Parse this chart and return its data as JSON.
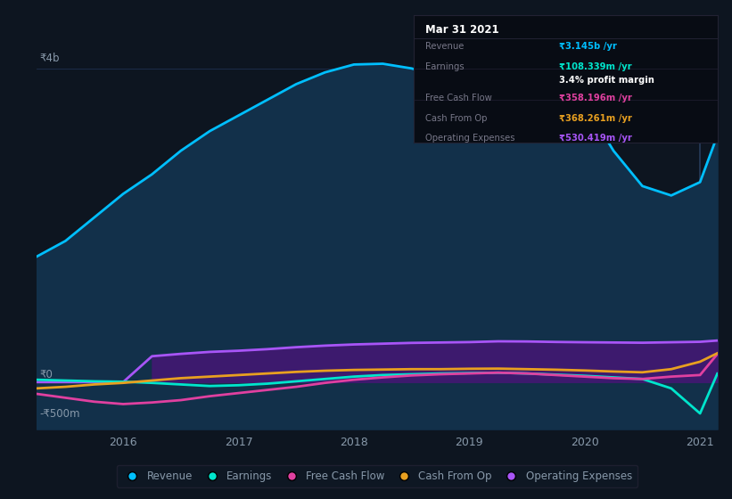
{
  "background_color": "#0d1520",
  "plot_bg_color": "#0d1520",
  "x_years": [
    2015.25,
    2015.5,
    2015.75,
    2016.0,
    2016.25,
    2016.5,
    2016.75,
    2017.0,
    2017.25,
    2017.5,
    2017.75,
    2018.0,
    2018.25,
    2018.5,
    2018.75,
    2019.0,
    2019.25,
    2019.5,
    2019.75,
    2020.0,
    2020.25,
    2020.5,
    2020.75,
    2021.0,
    2021.15
  ],
  "revenue": [
    1600,
    1800,
    2100,
    2400,
    2650,
    2950,
    3200,
    3400,
    3600,
    3800,
    3950,
    4050,
    4060,
    4000,
    3900,
    3800,
    3850,
    3780,
    3680,
    3550,
    2950,
    2500,
    2380,
    2550,
    3145
  ],
  "earnings": [
    30,
    20,
    10,
    5,
    -10,
    -30,
    -50,
    -40,
    -20,
    10,
    40,
    70,
    90,
    100,
    110,
    115,
    120,
    110,
    95,
    80,
    60,
    40,
    -80,
    -400,
    108
  ],
  "free_cash_flow": [
    -150,
    -200,
    -250,
    -280,
    -260,
    -230,
    -180,
    -140,
    -100,
    -60,
    -10,
    30,
    60,
    85,
    100,
    110,
    120,
    110,
    90,
    70,
    50,
    40,
    70,
    90,
    358
  ],
  "cash_from_op": [
    -80,
    -60,
    -30,
    -10,
    20,
    50,
    70,
    90,
    110,
    130,
    145,
    155,
    160,
    165,
    165,
    170,
    172,
    165,
    158,
    148,
    135,
    125,
    165,
    260,
    368
  ],
  "operating_expenses": [
    0,
    0,
    0,
    0,
    330,
    360,
    385,
    400,
    420,
    445,
    465,
    480,
    490,
    500,
    505,
    510,
    520,
    518,
    512,
    508,
    505,
    502,
    508,
    514,
    530
  ],
  "revenue_color": "#00bfff",
  "revenue_fill": "#12304a",
  "earnings_color": "#00e5cc",
  "free_cash_flow_color": "#e040a0",
  "cash_from_op_color": "#e8a020",
  "operating_expenses_color": "#a855f7",
  "operating_expenses_fill": "#3d1a6e",
  "text_color": "#8899aa",
  "ylabel_top": "₹4b",
  "ylabel_zero": "₹0",
  "ylabel_bottom": "-₹500m",
  "x_ticks": [
    2016,
    2017,
    2018,
    2019,
    2020,
    2021
  ],
  "legend_labels": [
    "Revenue",
    "Earnings",
    "Free Cash Flow",
    "Cash From Op",
    "Operating Expenses"
  ],
  "legend_colors": [
    "#00bfff",
    "#00e5cc",
    "#e040a0",
    "#e8a020",
    "#a855f7"
  ],
  "highlight_x": 2021.0,
  "ylim_min": -600,
  "ylim_max": 4300,
  "xmin": 2015.25,
  "xmax": 2021.15,
  "tooltip": {
    "title": "Mar 31 2021",
    "rows": [
      {
        "label": "Revenue",
        "value": "₹3.145b /yr",
        "color": "#00bfff"
      },
      {
        "label": "Earnings",
        "value": "₹108.339m /yr",
        "color": "#00e5cc"
      },
      {
        "label": "",
        "value": "3.4% profit margin",
        "color": "#ffffff"
      },
      {
        "label": "Free Cash Flow",
        "value": "₹358.196m /yr",
        "color": "#e040a0"
      },
      {
        "label": "Cash From Op",
        "value": "₹368.261m /yr",
        "color": "#e8a020"
      },
      {
        "label": "Operating Expenses",
        "value": "₹530.419m /yr",
        "color": "#a855f7"
      }
    ]
  }
}
